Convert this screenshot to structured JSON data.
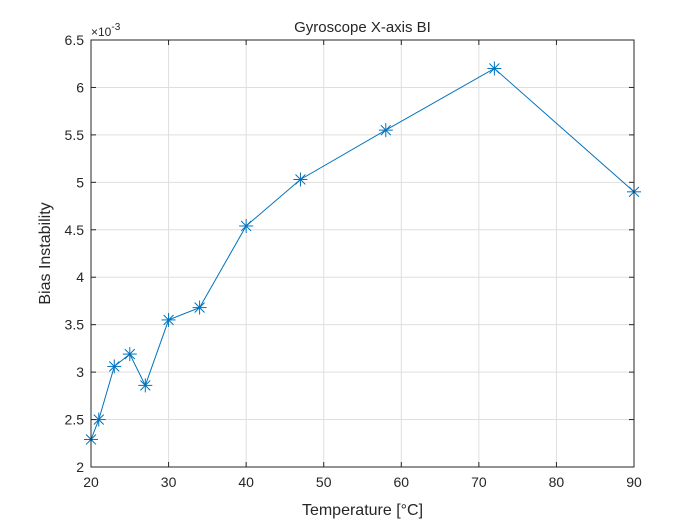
{
  "chart_data": {
    "type": "line",
    "title": "Gyroscope X-axis BI",
    "xlabel": "Temperature [°C]",
    "ylabel": "Bias Instability",
    "y_multiplier": "×10",
    "y_exponent": "-3",
    "xlim": [
      20,
      90
    ],
    "ylim": [
      2,
      6.5
    ],
    "x_ticks": [
      20,
      30,
      40,
      50,
      60,
      70,
      80,
      90
    ],
    "y_ticks": [
      2,
      2.5,
      3,
      3.5,
      4,
      4.5,
      5,
      5.5,
      6,
      6.5
    ],
    "grid": true,
    "marker": "asterisk",
    "line_color": "#0072BD",
    "series": [
      {
        "x": [
          20,
          21,
          23,
          25,
          27,
          30,
          34,
          40,
          47,
          58,
          72,
          90
        ],
        "y": [
          2.29,
          2.5,
          3.06,
          3.19,
          2.86,
          3.55,
          3.68,
          4.54,
          5.03,
          5.55,
          6.2,
          4.9
        ]
      }
    ]
  }
}
